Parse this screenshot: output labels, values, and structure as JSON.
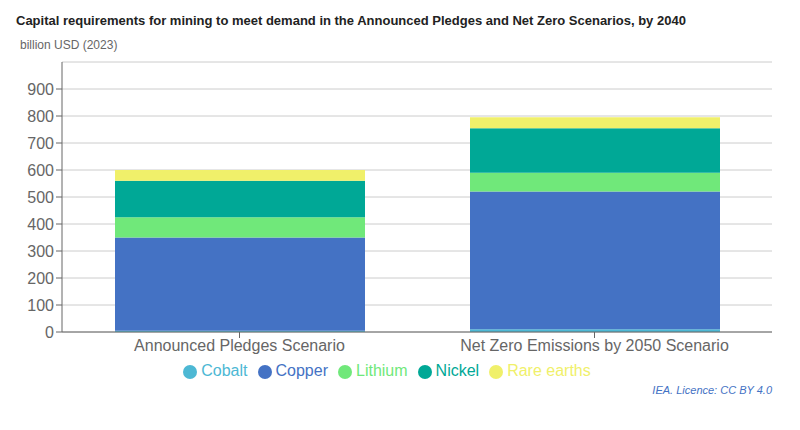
{
  "chart_data": {
    "type": "bar",
    "stacked": true,
    "title": "Capital requirements for mining to meet demand in the Announced Pledges and Net Zero Scenarios, by 2040",
    "ylabel": "billion USD (2023)",
    "annotations": [
      "IEA. Licence: CC BY 4.0"
    ],
    "categories": [
      "Announced Pledges Scenario",
      "Net Zero Emissions by 2050 Scenario"
    ],
    "series": [
      {
        "name": "Cobalt",
        "color": "#4DB8D4",
        "values": [
          5,
          10
        ]
      },
      {
        "name": "Copper",
        "color": "#4472C4",
        "values": [
          345,
          510
        ]
      },
      {
        "name": "Lithium",
        "color": "#70E87A",
        "values": [
          75,
          70
        ]
      },
      {
        "name": "Nickel",
        "color": "#00A896",
        "values": [
          135,
          165
        ]
      },
      {
        "name": "Rare earths",
        "color": "#F0F06A",
        "values": [
          40,
          40
        ]
      }
    ],
    "ylim": [
      0,
      1000
    ],
    "yticks": [
      0,
      100,
      200,
      300,
      400,
      500,
      600,
      700,
      800,
      900
    ],
    "grid": true,
    "legend": "bottom"
  }
}
